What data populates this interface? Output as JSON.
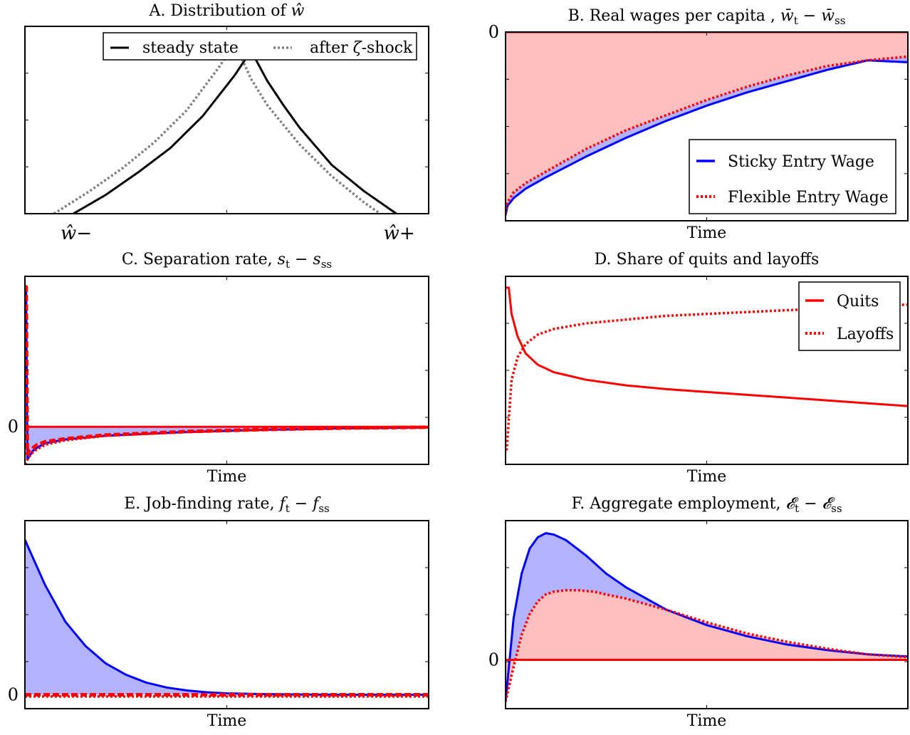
{
  "chart_data": [
    {
      "id": "A",
      "type": "line",
      "title": "A. Distribution of ŵ",
      "title_parts": [
        {
          "t": "A. Distribution of "
        },
        {
          "t": "ŵ",
          "m": true
        }
      ],
      "xlabel": "",
      "x_tick_labels": [
        "ŵ−",
        "ŵ+"
      ],
      "x_ticks": [
        0.0,
        1.0
      ],
      "xlim": [
        -0.15,
        1.1
      ],
      "ylim": [
        0,
        1.0
      ],
      "grid": false,
      "legend": {
        "placement": "top-right",
        "layout": "horizontal",
        "entries": [
          {
            "label": "steady state",
            "label_parts": [
              {
                "t": "steady state"
              }
            ],
            "style": "solid",
            "color": "#000000"
          },
          {
            "label": "after ζ-shock",
            "label_parts": [
              {
                "t": "after "
              },
              {
                "t": "ζ",
                "m": true
              },
              {
                "t": "-shock"
              }
            ],
            "style": "dotted",
            "color": "#808080"
          }
        ]
      },
      "series": [
        {
          "name": "steady state",
          "style": "solid",
          "color": "#000000",
          "x": [
            0.0,
            0.1,
            0.2,
            0.3,
            0.4,
            0.5,
            0.55,
            0.6,
            0.65,
            0.7,
            0.8,
            0.9,
            1.0
          ],
          "y": [
            0.0,
            0.1,
            0.22,
            0.35,
            0.52,
            0.74,
            0.87,
            0.71,
            0.58,
            0.46,
            0.26,
            0.12,
            0.0
          ]
        },
        {
          "name": "after ζ-shock",
          "style": "dotted",
          "color": "#808080",
          "x": [
            -0.06,
            0.05,
            0.15,
            0.25,
            0.35,
            0.45,
            0.5,
            0.55,
            0.6,
            0.7,
            0.8,
            0.9,
            0.95
          ],
          "y": [
            0.0,
            0.12,
            0.24,
            0.38,
            0.55,
            0.78,
            0.91,
            0.72,
            0.58,
            0.37,
            0.2,
            0.06,
            0.0
          ]
        }
      ]
    },
    {
      "id": "B",
      "type": "area",
      "title": "B. Real wages per capita , w̄t − w̄ss",
      "title_parts": [
        {
          "t": "B. Real wages per capita , "
        },
        {
          "t": "w̄",
          "m": true
        },
        {
          "t": "t",
          "sub": true
        },
        {
          "t": " − "
        },
        {
          "t": "w̄",
          "m": true
        },
        {
          "t": "ss",
          "sub": true
        }
      ],
      "xlabel": "Time",
      "y_tick_labels": [
        {
          "value": 0,
          "label": "0"
        }
      ],
      "xlim": [
        0,
        100
      ],
      "ylim": [
        -1.0,
        0.0
      ],
      "grid": false,
      "legend": {
        "placement": "bottom-right",
        "layout": "vertical",
        "entries": [
          {
            "label": "Sticky Entry Wage",
            "style": "solid",
            "color": "#0000ff"
          },
          {
            "label": "Flexible Entry Wage",
            "style": "dotted",
            "color": "#ff0000"
          }
        ]
      },
      "series": [
        {
          "name": "Sticky Entry Wage",
          "style": "solid",
          "color": "#0000ff",
          "fill": "#b3b3ff",
          "x": [
            0,
            0.5,
            2,
            5,
            10,
            20,
            30,
            40,
            50,
            60,
            70,
            80,
            90,
            100
          ],
          "y": [
            -0.97,
            -0.92,
            -0.88,
            -0.83,
            -0.77,
            -0.66,
            -0.56,
            -0.47,
            -0.39,
            -0.32,
            -0.26,
            -0.2,
            -0.15,
            -0.16
          ]
        },
        {
          "name": "Flexible Entry Wage",
          "style": "dotted",
          "color": "#ff0000",
          "fill": "#ffbfbf",
          "x": [
            0,
            0.5,
            2,
            5,
            10,
            20,
            30,
            40,
            50,
            60,
            70,
            80,
            90,
            100
          ],
          "y": [
            -0.96,
            -0.9,
            -0.85,
            -0.8,
            -0.74,
            -0.62,
            -0.52,
            -0.44,
            -0.36,
            -0.29,
            -0.23,
            -0.18,
            -0.15,
            -0.13
          ]
        },
        {
          "name": "",
          "style": "solid",
          "color": "#ff0000",
          "x": [
            0,
            100
          ],
          "y": [
            0,
            0
          ]
        }
      ]
    },
    {
      "id": "C",
      "type": "area",
      "title": "C. Separation rate, st − sss",
      "title_parts": [
        {
          "t": "C. Separation rate, "
        },
        {
          "t": "s",
          "m": true
        },
        {
          "t": "t",
          "sub": true
        },
        {
          "t": " − "
        },
        {
          "t": "s",
          "m": true
        },
        {
          "t": "ss",
          "sub": true
        }
      ],
      "xlabel": "Time",
      "y_tick_labels": [
        {
          "value": 0,
          "label": "0"
        }
      ],
      "xlim": [
        0,
        100
      ],
      "ylim": [
        -0.25,
        1.0
      ],
      "grid": false,
      "series": [
        {
          "name": "",
          "style": "solid",
          "color": "#0000ff",
          "fill": "#b3b3ff",
          "x": [
            0,
            0.3,
            0.6,
            1.0,
            2,
            3,
            5,
            10,
            20,
            40,
            60,
            80,
            100
          ],
          "y": [
            0.93,
            0.93,
            -0.22,
            -0.2,
            -0.16,
            -0.14,
            -0.11,
            -0.085,
            -0.06,
            -0.035,
            -0.02,
            -0.01,
            -0.005
          ]
        },
        {
          "name": "",
          "style": "dashed",
          "color": "#ff0000",
          "x": [
            0,
            0.3,
            0.6,
            1.0,
            2,
            3,
            5,
            10,
            20,
            40,
            60,
            80,
            100
          ],
          "y": [
            0.93,
            0.93,
            -0.18,
            -0.16,
            -0.14,
            -0.12,
            -0.1,
            -0.08,
            -0.055,
            -0.032,
            -0.018,
            -0.008,
            -0.003
          ]
        },
        {
          "name": "",
          "style": "dotted",
          "color": "#ff0000",
          "x": [
            0,
            0.6,
            1,
            2,
            3,
            5,
            10,
            20,
            40,
            60,
            80,
            100
          ],
          "y": [
            -0.25,
            -0.22,
            -0.2,
            -0.17,
            -0.15,
            -0.12,
            -0.09,
            -0.06,
            -0.035,
            -0.02,
            -0.01,
            -0.005
          ]
        },
        {
          "name": "",
          "style": "solid",
          "color": "#ff0000",
          "x": [
            0.8,
            100
          ],
          "y": [
            0,
            0
          ]
        }
      ]
    },
    {
      "id": "D",
      "type": "line",
      "title": "D. Share of quits and layoffs",
      "title_parts": [
        {
          "t": "D. Share of quits and layoffs"
        }
      ],
      "xlabel": "Time",
      "xlim": [
        0,
        100
      ],
      "ylim": [
        0,
        1
      ],
      "grid": false,
      "legend": {
        "placement": "top-right",
        "layout": "vertical",
        "entries": [
          {
            "label": "Quits",
            "style": "solid",
            "color": "#ff0000"
          },
          {
            "label": "Layoffs",
            "style": "dotted",
            "color": "#ff0000"
          }
        ]
      },
      "series": [
        {
          "name": "Quits",
          "style": "solid",
          "color": "#ff0000",
          "x": [
            0,
            0.8,
            1.5,
            3,
            5,
            8,
            12,
            20,
            30,
            40,
            50,
            60,
            70,
            80,
            90,
            100
          ],
          "y": [
            0.94,
            0.94,
            0.8,
            0.68,
            0.59,
            0.53,
            0.49,
            0.45,
            0.42,
            0.4,
            0.385,
            0.37,
            0.355,
            0.34,
            0.325,
            0.31
          ]
        },
        {
          "name": "Layoffs",
          "style": "dotted",
          "color": "#ff0000",
          "x": [
            0,
            0.3,
            1,
            1.5,
            3,
            5,
            8,
            12,
            20,
            30,
            40,
            50,
            60,
            70,
            80,
            90,
            100
          ],
          "y": [
            0.08,
            0.08,
            0.3,
            0.45,
            0.57,
            0.64,
            0.69,
            0.72,
            0.75,
            0.77,
            0.79,
            0.8,
            0.81,
            0.82,
            0.83,
            0.84,
            0.85
          ]
        }
      ]
    },
    {
      "id": "E",
      "type": "area",
      "title": "E. Job-finding rate, ft − fss",
      "title_parts": [
        {
          "t": "E. Job-finding rate, "
        },
        {
          "t": "f",
          "m": true
        },
        {
          "t": "t",
          "sub": true
        },
        {
          "t": " − "
        },
        {
          "t": "f",
          "m": true
        },
        {
          "t": "ss",
          "sub": true
        }
      ],
      "xlabel": "Time",
      "y_tick_labels": [
        {
          "value": 0,
          "label": "0"
        }
      ],
      "xlim": [
        0,
        100
      ],
      "ylim": [
        -0.08,
        1.0
      ],
      "grid": false,
      "series": [
        {
          "name": "",
          "style": "solid",
          "color": "#0000ff",
          "fill": "#b3b3ff",
          "x": [
            0,
            5,
            10,
            15,
            20,
            25,
            30,
            35,
            40,
            45,
            50,
            60,
            70,
            80,
            90,
            100
          ],
          "y": [
            0.89,
            0.63,
            0.42,
            0.28,
            0.18,
            0.115,
            0.07,
            0.042,
            0.025,
            0.014,
            0.008,
            0.003,
            0.001,
            0.0,
            0.0,
            0.0
          ]
        },
        {
          "name": "",
          "style": "dashed",
          "color": "#ff0000",
          "x": [
            0,
            100
          ],
          "y": [
            0,
            0
          ]
        },
        {
          "name": "",
          "style": "dotted",
          "color": "#ff0000",
          "x": [
            0,
            100
          ],
          "y": [
            -0.01,
            -0.01
          ]
        }
      ]
    },
    {
      "id": "F",
      "type": "area",
      "title": "F. Aggregate employment, 𝓔t − 𝓔ss",
      "title_parts": [
        {
          "t": "F. Aggregate employment, "
        },
        {
          "t": "𝓔",
          "m": true
        },
        {
          "t": "t",
          "sub": true
        },
        {
          "t": " − "
        },
        {
          "t": "𝓔",
          "m": true
        },
        {
          "t": "ss",
          "sub": true
        }
      ],
      "xlabel": "Time",
      "y_tick_labels": [
        {
          "value": 0,
          "label": "0"
        }
      ],
      "xlim": [
        0,
        100
      ],
      "ylim": [
        -0.35,
        1.0
      ],
      "grid": false,
      "series": [
        {
          "name": "",
          "style": "solid",
          "color": "#0000ff",
          "fill": "#b3b3ff",
          "x": [
            0,
            2,
            4,
            6,
            8,
            10,
            12,
            15,
            20,
            25,
            30,
            40,
            50,
            60,
            70,
            80,
            90,
            100
          ],
          "y": [
            -0.3,
            0.3,
            0.62,
            0.8,
            0.88,
            0.91,
            0.9,
            0.86,
            0.75,
            0.62,
            0.52,
            0.36,
            0.25,
            0.17,
            0.11,
            0.07,
            0.04,
            0.025
          ]
        },
        {
          "name": "",
          "style": "dotted",
          "color": "#ff0000",
          "fill": "#ffbfbf",
          "x": [
            0,
            2,
            4,
            6,
            8,
            10,
            12,
            15,
            18,
            22,
            25,
            30,
            40,
            50,
            60,
            70,
            80,
            90,
            100
          ],
          "y": [
            -0.3,
            -0.05,
            0.18,
            0.33,
            0.42,
            0.47,
            0.49,
            0.5,
            0.5,
            0.49,
            0.47,
            0.44,
            0.36,
            0.27,
            0.19,
            0.13,
            0.08,
            0.04,
            0.02
          ]
        },
        {
          "name": "",
          "style": "solid",
          "color": "#ff0000",
          "x": [
            0,
            100
          ],
          "y": [
            0,
            0
          ]
        }
      ]
    }
  ]
}
